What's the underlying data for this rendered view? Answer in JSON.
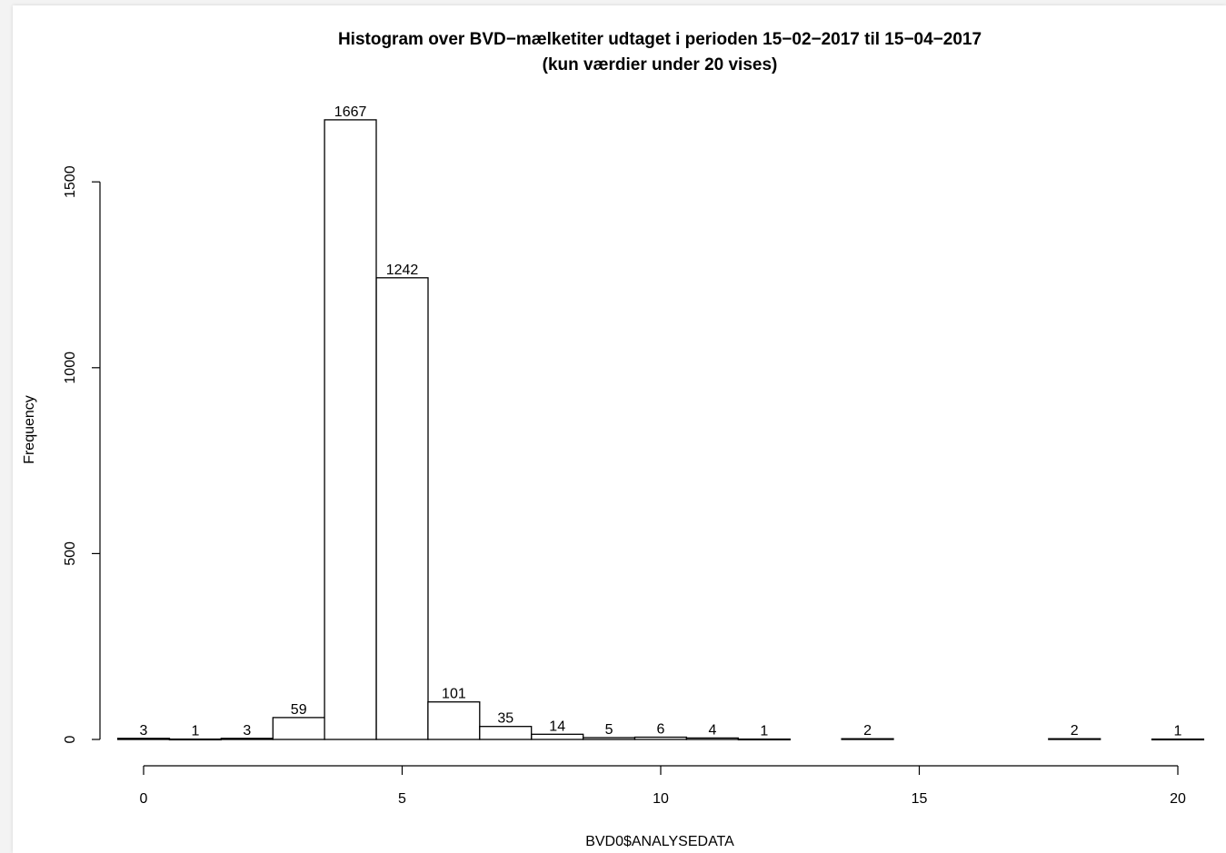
{
  "chart_data": {
    "type": "bar",
    "title": "Histogram over BVD−mælketiter udtaget i perioden 15−02−2017 til 15−04−2017",
    "subtitle": "(kun værdier under 20 vises)",
    "xlabel": "BVD0$ANALYSEDATA",
    "ylabel": "Frequency",
    "xlim": [
      -0.5,
      20.5
    ],
    "ylim": [
      0,
      1667
    ],
    "x_ticks": [
      0,
      5,
      10,
      15,
      20
    ],
    "y_ticks": [
      0,
      500,
      1000,
      1500
    ],
    "bin_width": 1,
    "grid": false,
    "bins": [
      {
        "x": 0,
        "value": 3,
        "label": "3"
      },
      {
        "x": 1,
        "value": 1,
        "label": "1"
      },
      {
        "x": 2,
        "value": 3,
        "label": "3"
      },
      {
        "x": 3,
        "value": 59,
        "label": "59"
      },
      {
        "x": 4,
        "value": 1667,
        "label": "1667"
      },
      {
        "x": 5,
        "value": 1242,
        "label": "1242"
      },
      {
        "x": 6,
        "value": 101,
        "label": "101"
      },
      {
        "x": 7,
        "value": 35,
        "label": "35"
      },
      {
        "x": 8,
        "value": 14,
        "label": "14"
      },
      {
        "x": 9,
        "value": 5,
        "label": "5"
      },
      {
        "x": 10,
        "value": 6,
        "label": "6"
      },
      {
        "x": 11,
        "value": 4,
        "label": "4"
      },
      {
        "x": 12,
        "value": 1,
        "label": "1"
      },
      {
        "x": 14,
        "value": 2,
        "label": "2"
      },
      {
        "x": 18,
        "value": 2,
        "label": "2"
      },
      {
        "x": 20,
        "value": 1,
        "label": "1"
      }
    ]
  },
  "colors": {
    "bar_fill": "#ffffff",
    "bar_stroke": "#000000",
    "background": "#ffffff"
  }
}
